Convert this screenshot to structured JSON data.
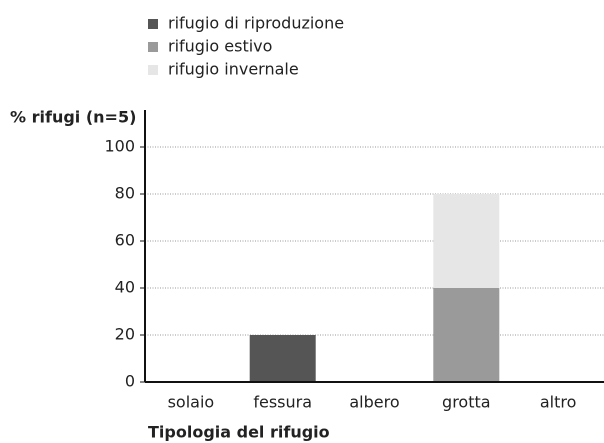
{
  "chart_data": {
    "type": "stacked_bar",
    "y_label": "% rifugi (n=5)",
    "x_label": "Tipologia del rifugio",
    "categories": [
      "solaio",
      "fessura",
      "albero",
      "grotta",
      "altro"
    ],
    "series": [
      {
        "name": "rifugio di riproduzione",
        "color": "#555555",
        "values": [
          0,
          20,
          0,
          0,
          0
        ]
      },
      {
        "name": "rifugio estivo",
        "color": "#9a9a9a",
        "values": [
          0,
          0,
          0,
          40,
          0
        ]
      },
      {
        "name": "rifugio invernale",
        "color": "#e6e6e6",
        "values": [
          0,
          0,
          0,
          40,
          0
        ]
      }
    ],
    "ylim": [
      0,
      100
    ],
    "yticks": [
      0,
      20,
      40,
      60,
      80,
      100
    ],
    "grid": true
  }
}
